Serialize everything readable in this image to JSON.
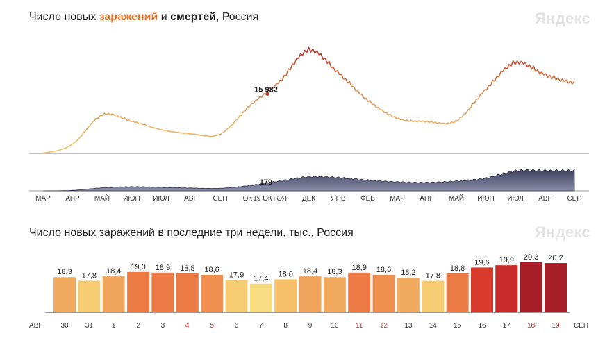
{
  "chart1": {
    "title_prefix": "Число новых ",
    "title_highlight_1": "заражений",
    "title_mid": " и ",
    "title_highlight_2": "смертей",
    "title_suffix": ", Россия",
    "brand": "Яндекс",
    "annotation_cases": "15 982",
    "annotation_deaths": "179",
    "annotation_date": "19 ОКТ",
    "months": [
      "МАР",
      "АПР",
      "МАЙ",
      "ИЮН",
      "ИЮЛ",
      "АВГ",
      "СЕН",
      "ОКТ",
      "НОЯ",
      "ДЕК",
      "ЯНВ",
      "ФЕВ",
      "МАР",
      "АПР",
      "МАЙ",
      "ИЮН",
      "ИЮЛ",
      "АВГ",
      "СЕН"
    ]
  },
  "chart2": {
    "title": "Число новых заражений в последние три недели, тыс., Россия",
    "brand": "Яндекс",
    "start_month": "АВГ",
    "end_month": "СЕН"
  },
  "chart_data": [
    {
      "type": "line",
      "title": "Число новых заражений и смертей, Россия",
      "x": [
        "МАР",
        "АПР",
        "МАЙ",
        "ИЮН",
        "ИЮЛ",
        "АВГ",
        "СЕН",
        "ОКТ",
        "НОЯ",
        "ДЕК",
        "ЯНВ",
        "ФЕВ",
        "МАР",
        "АПР",
        "МАЙ",
        "ИЮН",
        "ИЮЛ",
        "АВГ",
        "СЕН"
      ],
      "series": [
        {
          "name": "заражений",
          "values": [
            100,
            2500,
            10500,
            8800,
            6400,
            5300,
            5200,
            13000,
            19500,
            28200,
            22000,
            14500,
            9600,
            8700,
            8900,
            17500,
            24800,
            21500,
            19300
          ]
        },
        {
          "name": "смертей",
          "values": [
            0,
            20,
            120,
            160,
            140,
            110,
            100,
            210,
            380,
            550,
            520,
            420,
            350,
            330,
            380,
            500,
            780,
            790,
            790
          ]
        }
      ],
      "annotations": [
        {
          "label": "15 982",
          "series": "заражений",
          "date": "19 ОКТ"
        },
        {
          "label": "179",
          "series": "смертей",
          "date": "19 ОКТ"
        }
      ]
    },
    {
      "type": "bar",
      "title": "Число новых заражений в последние три недели, тыс., Россия",
      "categories": [
        "30",
        "31",
        "1",
        "2",
        "3",
        "4",
        "5",
        "6",
        "7",
        "8",
        "9",
        "10",
        "11",
        "12",
        "13",
        "14",
        "15",
        "16",
        "17",
        "18",
        "19"
      ],
      "values": [
        18.3,
        17.8,
        18.4,
        19.0,
        18.9,
        18.8,
        18.6,
        17.9,
        17.4,
        18.0,
        18.4,
        18.3,
        18.9,
        18.6,
        18.2,
        17.8,
        18.8,
        19.6,
        19.9,
        20.3,
        20.2
      ],
      "labels": [
        "18,3",
        "17,8",
        "18,4",
        "19,0",
        "18,9",
        "18,8",
        "18,6",
        "17,9",
        "17,4",
        "18,0",
        "18,4",
        "18,3",
        "18,9",
        "18,6",
        "18,2",
        "17,8",
        "18,8",
        "19,6",
        "19,9",
        "20,3",
        "20,2"
      ],
      "weekend_categories": [
        "4",
        "5",
        "11",
        "12",
        "18",
        "19"
      ],
      "start_label": "АВГ",
      "end_label": "СЕН"
    }
  ]
}
